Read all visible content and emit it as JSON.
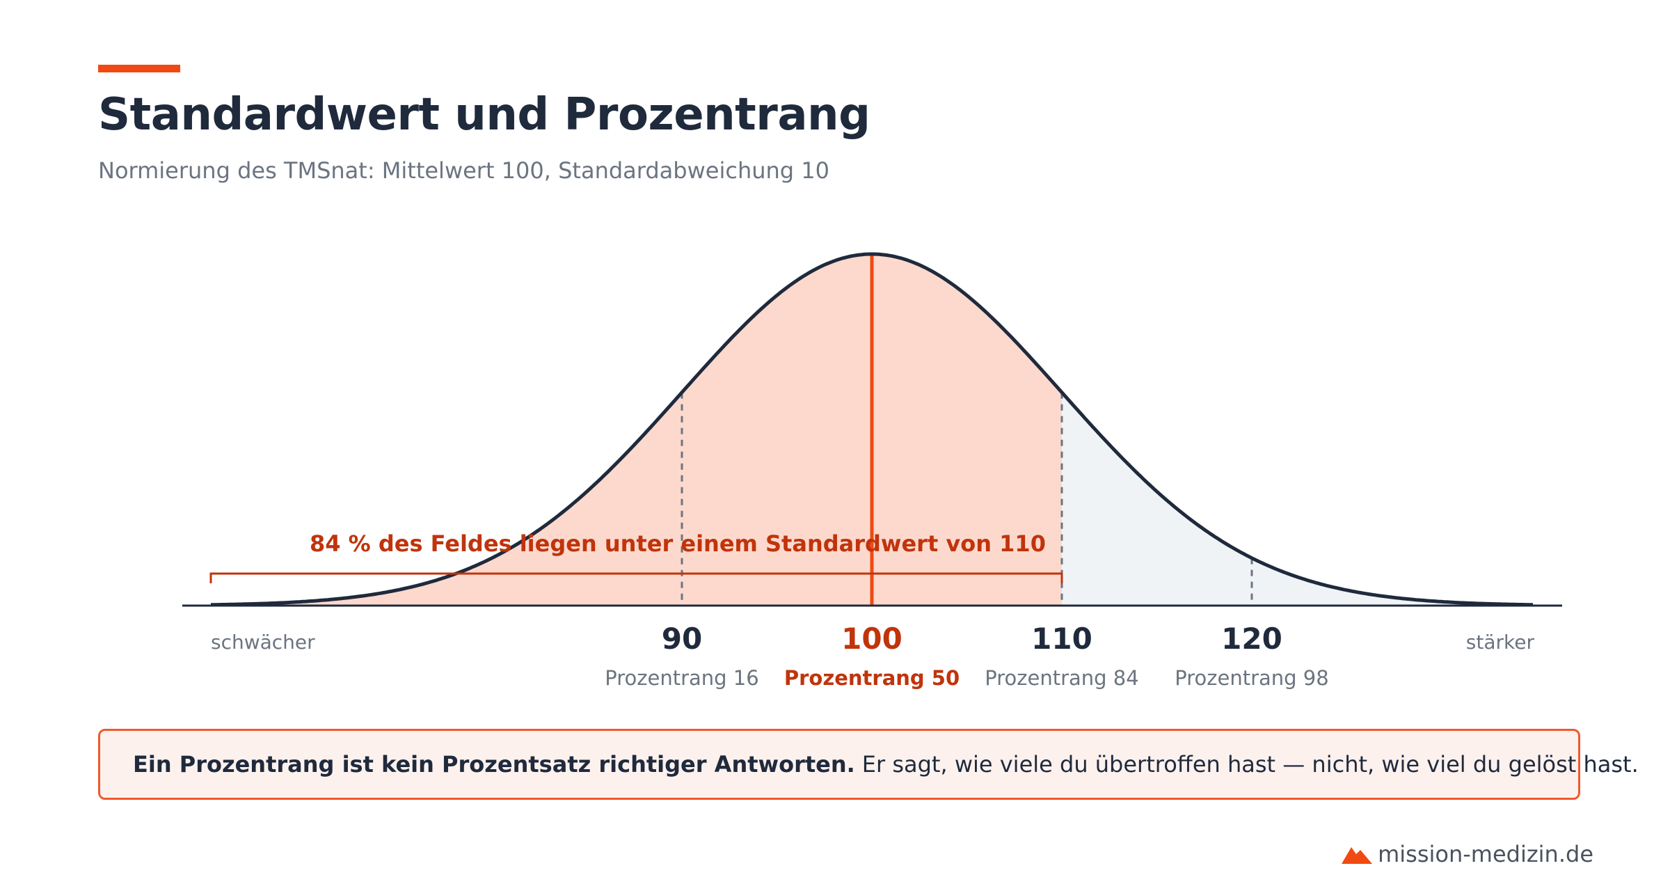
{
  "title": "Standardwert und Prozentrang",
  "subtitle": "Normierung des TMSnat: Mittelwert 100, Standardabweichung 10",
  "chart_data": {
    "type": "area",
    "distribution": "normal",
    "mean": 100,
    "sd": 10,
    "xlim": [
      67,
      135
    ],
    "grid": false,
    "shaded_below": 110,
    "markers": [
      {
        "x": 90,
        "label": "90",
        "sublabel": "Prozentrang 16",
        "highlight": false
      },
      {
        "x": 100,
        "label": "100",
        "sublabel": "Prozentrang 50",
        "highlight": true
      },
      {
        "x": 110,
        "label": "110",
        "sublabel": "Prozentrang 84",
        "highlight": false
      },
      {
        "x": 120,
        "label": "120",
        "sublabel": "Prozentrang 98",
        "highlight": false
      }
    ],
    "axis_left_label": "schwächer",
    "axis_right_label": "stärker",
    "annotation": "84 % des Feldes liegen unter einem Standardwert von 110",
    "colors": {
      "accent": "#f04a12",
      "accent_text": "#c0340c",
      "shade_below": "#fdd9cd",
      "shade_above": "#f0f3f6",
      "curve": "#1f2a3c",
      "dashed": "#6b7480"
    }
  },
  "note": {
    "bold": "Ein Prozentrang ist kein Prozentsatz richtiger Antworten.",
    "text": "Er sagt, wie viele du übertroffen hast — nicht, wie viel du gelöst hast."
  },
  "footer": {
    "logo_icon": "mountain-icon",
    "text": "mission-medizin.de"
  }
}
